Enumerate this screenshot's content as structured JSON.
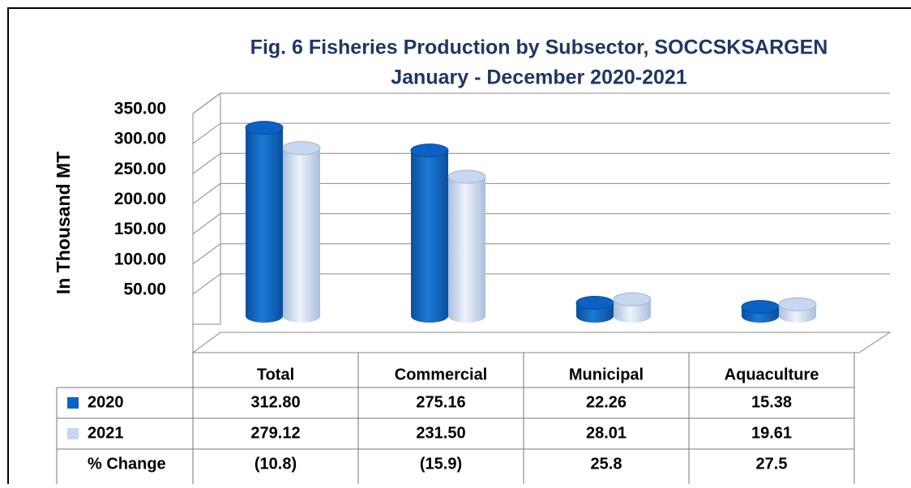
{
  "chart_data": {
    "type": "bar",
    "title": "Fig. 6 Fisheries Production  by Subsector, SOCCSKSARGEN",
    "subtitle": "January - December 2020-2021",
    "y_label": "In Thousand  MT",
    "categories": [
      "Total",
      "Commercial",
      "Municipal",
      "Aquaculture"
    ],
    "series": [
      {
        "name": "2020",
        "color": "#0b62c4",
        "values": [
          312.8,
          275.16,
          22.26,
          15.38
        ],
        "value_labels": [
          "312.80",
          "275.16",
          "22.26",
          "15.38"
        ]
      },
      {
        "name": "2021",
        "color": "#c6d7ef",
        "values": [
          279.12,
          231.5,
          28.01,
          19.61
        ],
        "value_labels": [
          "279.12",
          "231.50",
          "28.01",
          "19.61"
        ]
      }
    ],
    "change": {
      "name": "% Change",
      "values": [
        -10.8,
        -15.9,
        25.8,
        27.5
      ],
      "value_labels": [
        "(10.8)",
        "(15.9)",
        "25.8",
        "27.5"
      ]
    },
    "ylim": [
      0,
      350
    ],
    "yticks": [
      {
        "value": 50,
        "label": "50.00"
      },
      {
        "value": 100,
        "label": "100.00"
      },
      {
        "value": 150,
        "label": "150.00"
      },
      {
        "value": 200,
        "label": "200.00"
      },
      {
        "value": 250,
        "label": "250.00"
      },
      {
        "value": 300,
        "label": "300.00"
      },
      {
        "value": 350,
        "label": "350.00"
      }
    ],
    "grid": true
  }
}
